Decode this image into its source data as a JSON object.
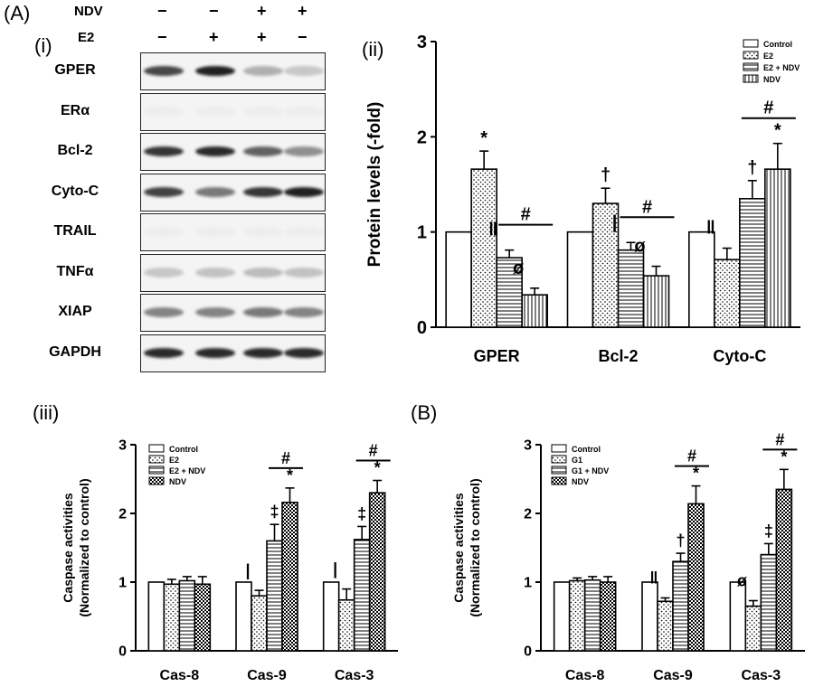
{
  "panelA": {
    "letter": "(A)",
    "sub_i": "(i)",
    "treatments": [
      {
        "label": "NDV",
        "signs": [
          "−",
          "−",
          "+",
          "+"
        ]
      },
      {
        "label": "E2",
        "signs": [
          "−",
          "+",
          "+",
          "−"
        ]
      }
    ],
    "blots": [
      {
        "label": "GPER",
        "bands": [
          0.78,
          0.95,
          0.3,
          0.2
        ]
      },
      {
        "label": "ERα",
        "bands": [
          0.03,
          0.03,
          0.03,
          0.03
        ]
      },
      {
        "label": "Bcl-2",
        "bands": [
          0.85,
          0.9,
          0.65,
          0.45
        ]
      },
      {
        "label": "Cyto-C",
        "bands": [
          0.8,
          0.55,
          0.85,
          0.95
        ]
      },
      {
        "label": "TRAIL",
        "bands": [
          0.03,
          0.03,
          0.03,
          0.03
        ]
      },
      {
        "label": "TNFα",
        "bands": [
          0.2,
          0.22,
          0.25,
          0.22
        ]
      },
      {
        "label": "XIAP",
        "bands": [
          0.5,
          0.5,
          0.55,
          0.5
        ]
      },
      {
        "label": "GAPDH",
        "bands": [
          0.9,
          0.9,
          0.9,
          0.9
        ]
      }
    ]
  },
  "labels": {
    "sub_ii": "(ii)",
    "sub_iii": "(iii)",
    "letterB": "(B)"
  },
  "colors": {
    "bar_stroke": "#000000",
    "background": "#ffffff"
  },
  "chart_data": [
    {
      "id": "ii",
      "type": "bar",
      "categories": [
        "GPER",
        "Bcl-2",
        "Cyto-C"
      ],
      "series": [
        {
          "name": "Control",
          "pattern": "blank",
          "values": [
            1.0,
            1.0,
            1.0
          ],
          "errors": [
            0,
            0,
            0
          ]
        },
        {
          "name": "E2",
          "pattern": "dots",
          "values": [
            1.66,
            1.3,
            0.71
          ],
          "errors": [
            0.19,
            0.16,
            0.12
          ]
        },
        {
          "name": "E2 + NDV",
          "pattern": "hlines",
          "values": [
            0.73,
            0.81,
            1.35
          ],
          "errors": [
            0.08,
            0.08,
            0.19
          ]
        },
        {
          "name": "NDV",
          "pattern": "vlines",
          "values": [
            0.34,
            0.54,
            1.66
          ],
          "errors": [
            0.07,
            0.1,
            0.27
          ]
        }
      ],
      "ylabel": "Protein levels (-fold)",
      "ylim": [
        0,
        3
      ],
      "yticks": [
        "0",
        "1",
        "2",
        "3"
      ],
      "legend_position": "top-right",
      "annotations": [
        {
          "text": "*",
          "cat": 0,
          "series": 1
        },
        {
          "text": "‖",
          "cat": 0,
          "series": 2
        },
        {
          "text": "ø",
          "cat": 0,
          "series": 3
        },
        {
          "text": "†",
          "cat": 1,
          "series": 1
        },
        {
          "text": "|",
          "cat": 1,
          "series": 2
        },
        {
          "text": "ø",
          "cat": 1,
          "series": 3
        },
        {
          "text": "‖",
          "cat": 2,
          "series": 1
        },
        {
          "text": "†",
          "cat": 2,
          "series": 2
        },
        {
          "text": "*",
          "cat": 2,
          "series": 3
        }
      ],
      "brackets": [
        {
          "cat": 0,
          "text": "#"
        },
        {
          "cat": 1,
          "text": "#"
        },
        {
          "cat": 2,
          "text": "#"
        }
      ]
    },
    {
      "id": "iii",
      "type": "bar",
      "categories": [
        "Cas-8",
        "Cas-9",
        "Cas-3"
      ],
      "series": [
        {
          "name": "Control",
          "pattern": "blank",
          "values": [
            1.0,
            1.0,
            1.0
          ],
          "errors": [
            0,
            0,
            0
          ]
        },
        {
          "name": "E2",
          "pattern": "dots",
          "values": [
            0.97,
            0.8,
            0.74
          ],
          "errors": [
            0.07,
            0.08,
            0.16
          ]
        },
        {
          "name": "E2 + NDV",
          "pattern": "hlines",
          "values": [
            1.02,
            1.6,
            1.62
          ],
          "errors": [
            0.06,
            0.24,
            0.19
          ]
        },
        {
          "name": "NDV",
          "pattern": "checker",
          "values": [
            0.97,
            2.16,
            2.3
          ],
          "errors": [
            0.11,
            0.21,
            0.18
          ]
        }
      ],
      "ylabel": "Caspase activities",
      "ylabel2": "(Normalized to control)",
      "ylim": [
        0,
        3
      ],
      "yticks": [
        "0",
        "1",
        "2",
        "3"
      ],
      "legend_position": "top-left",
      "annotations": [
        {
          "text": "|",
          "cat": 1,
          "series": 1
        },
        {
          "text": "‡",
          "cat": 1,
          "series": 2
        },
        {
          "text": "*",
          "cat": 1,
          "series": 3
        },
        {
          "text": "|",
          "cat": 2,
          "series": 1
        },
        {
          "text": "‡",
          "cat": 2,
          "series": 2
        },
        {
          "text": "*",
          "cat": 2,
          "series": 3
        }
      ],
      "brackets": [
        {
          "cat": 1,
          "text": "#"
        },
        {
          "cat": 2,
          "text": "#"
        }
      ]
    },
    {
      "id": "B",
      "type": "bar",
      "categories": [
        "Cas-8",
        "Cas-9",
        "Cas-3"
      ],
      "series": [
        {
          "name": "Control",
          "pattern": "blank",
          "values": [
            1.0,
            1.0,
            1.0
          ],
          "errors": [
            0,
            0,
            0
          ]
        },
        {
          "name": "G1",
          "pattern": "dots",
          "values": [
            1.02,
            0.72,
            0.65
          ],
          "errors": [
            0.04,
            0.05,
            0.08
          ]
        },
        {
          "name": "G1 + NDV",
          "pattern": "hlines",
          "values": [
            1.03,
            1.3,
            1.4
          ],
          "errors": [
            0.05,
            0.12,
            0.16
          ]
        },
        {
          "name": "NDV",
          "pattern": "checker",
          "values": [
            1.0,
            2.14,
            2.35
          ],
          "errors": [
            0.08,
            0.26,
            0.29
          ]
        }
      ],
      "ylabel": "Caspase activities",
      "ylabel2": "(Normalized to control)",
      "ylim": [
        0,
        3
      ],
      "yticks": [
        "0",
        "1",
        "2",
        "3"
      ],
      "legend_position": "top-left",
      "annotations": [
        {
          "text": "‖",
          "cat": 1,
          "series": 1
        },
        {
          "text": "†",
          "cat": 1,
          "series": 2
        },
        {
          "text": "*",
          "cat": 1,
          "series": 3
        },
        {
          "text": "ø",
          "cat": 2,
          "series": 1
        },
        {
          "text": "‡",
          "cat": 2,
          "series": 2
        },
        {
          "text": "*",
          "cat": 2,
          "series": 3
        }
      ],
      "brackets": [
        {
          "cat": 1,
          "text": "#"
        },
        {
          "cat": 2,
          "text": "#"
        }
      ]
    }
  ]
}
